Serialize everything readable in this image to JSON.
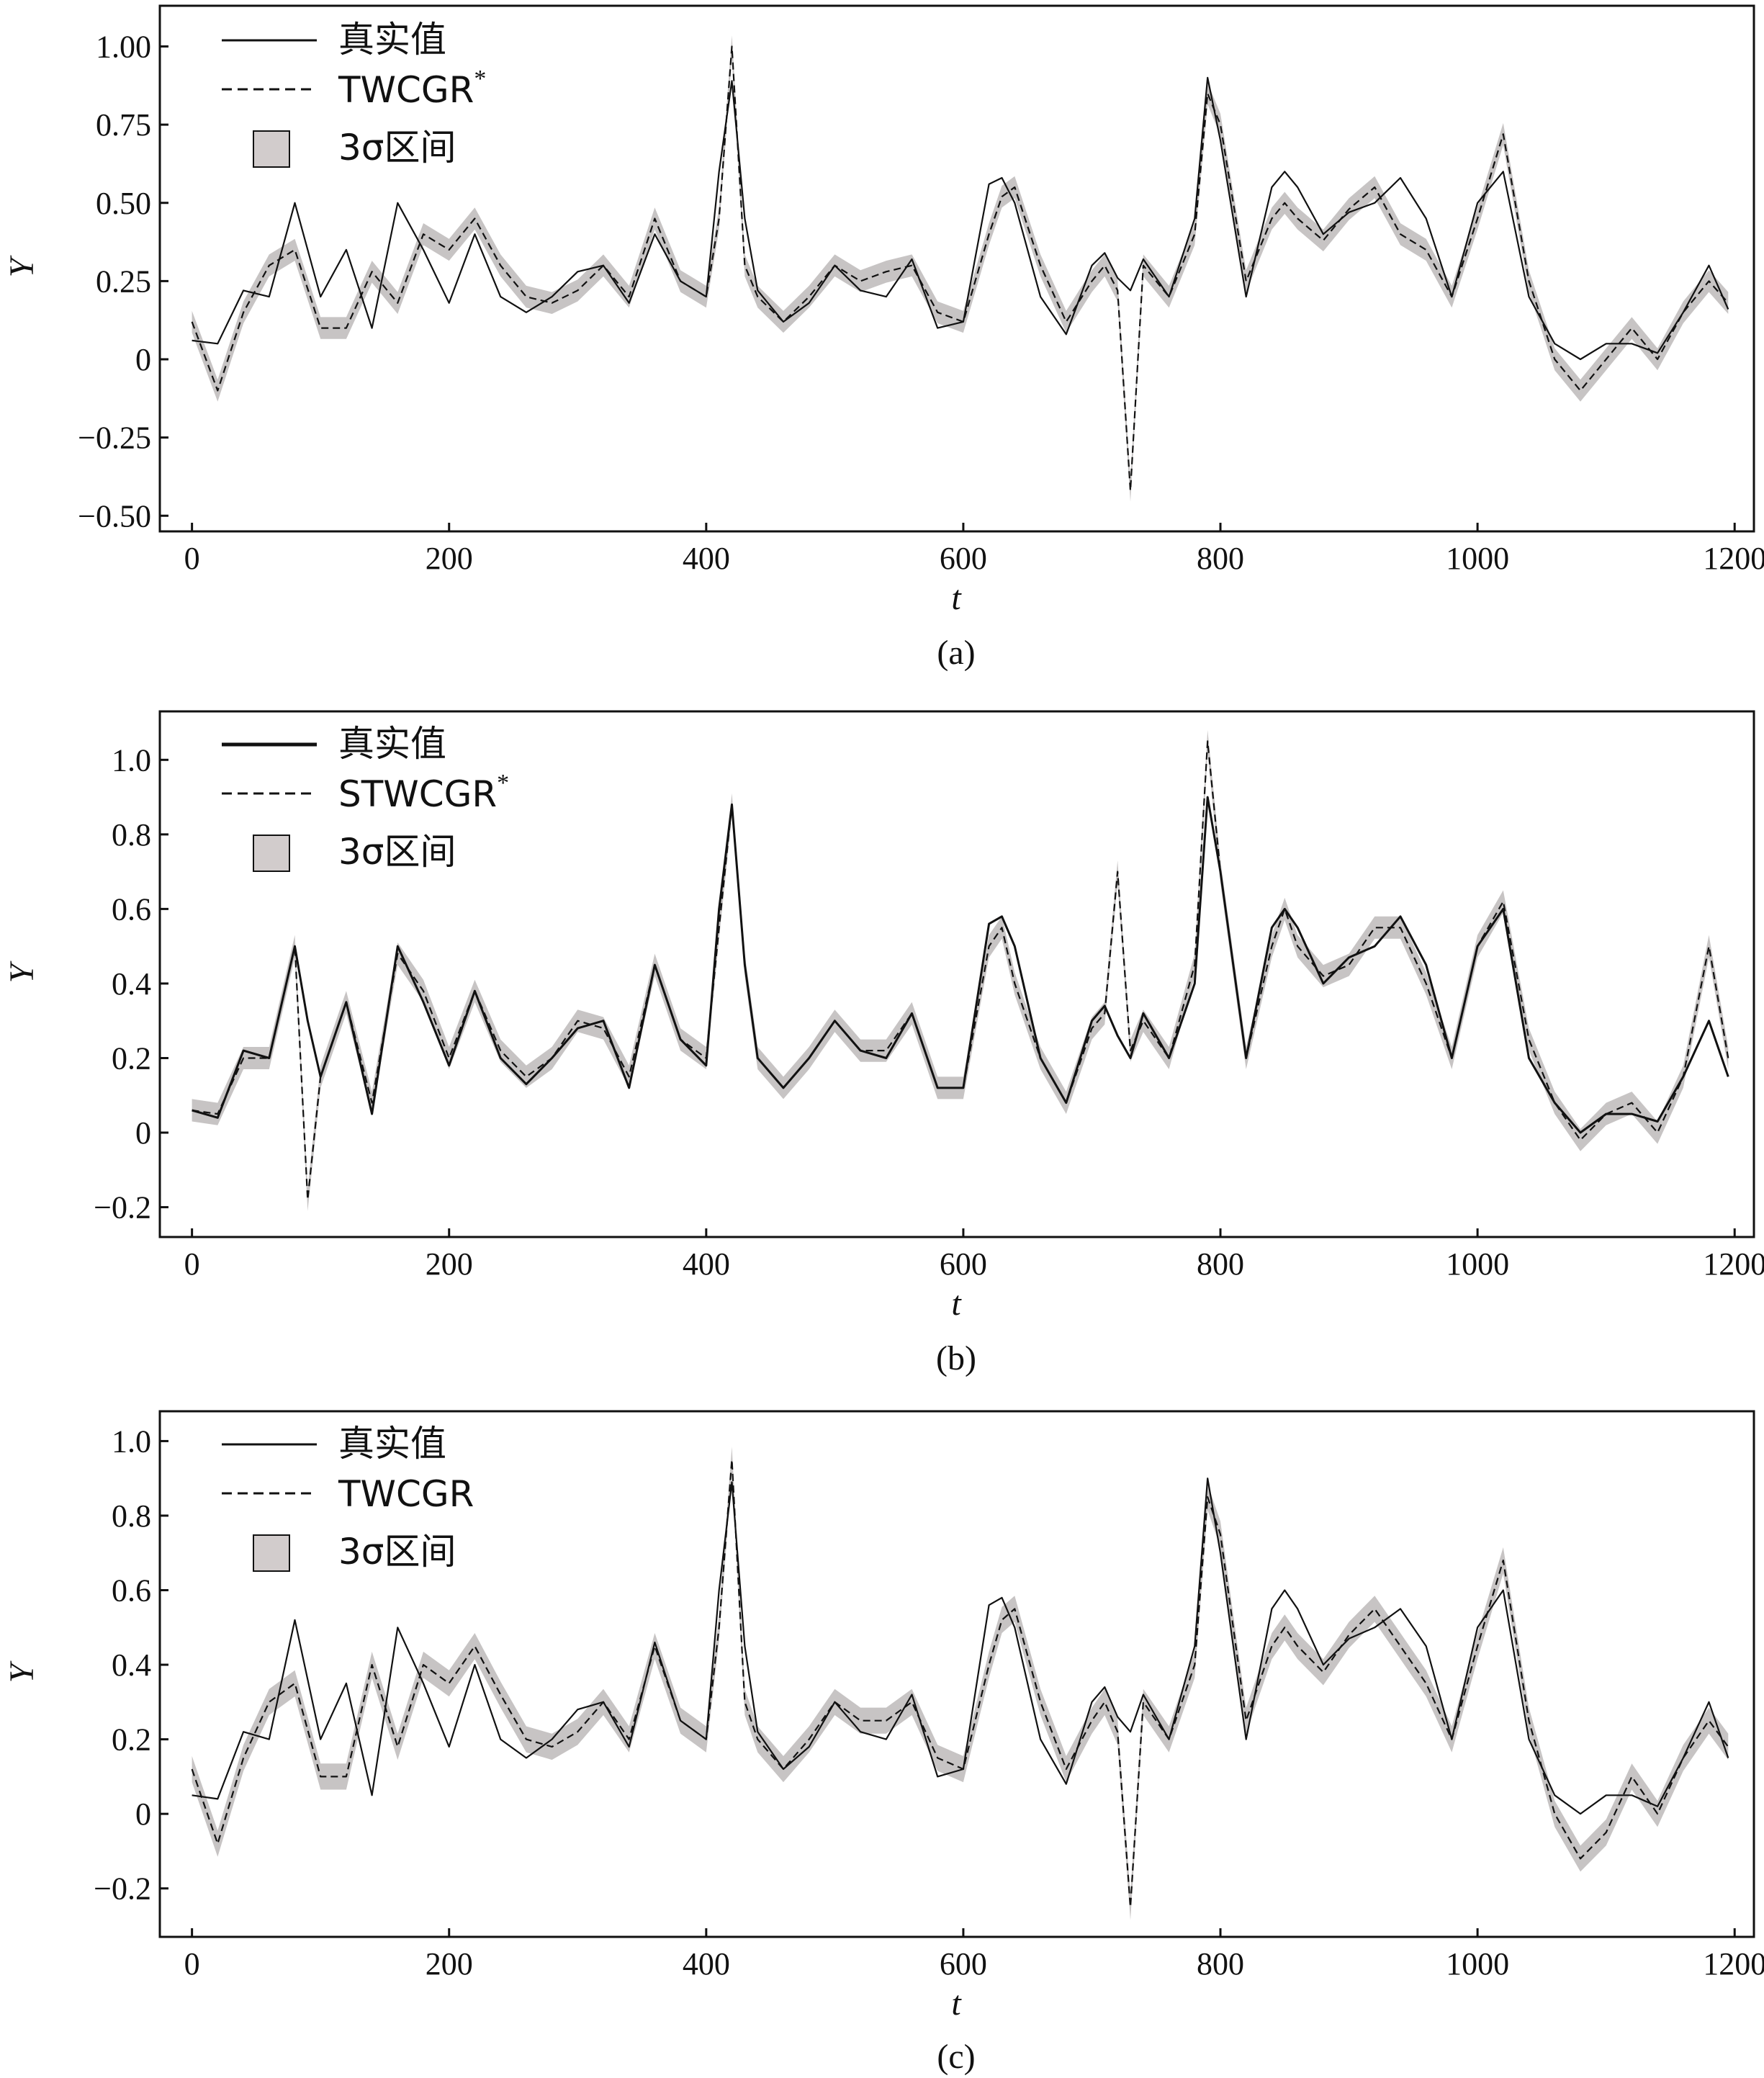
{
  "chart_data": [
    {
      "type": "line",
      "panel_label": "(a)",
      "xlabel": "t",
      "ylabel": "Y",
      "xlim": [
        -25,
        1215
      ],
      "ylim": [
        -0.55,
        1.13
      ],
      "xticks": [
        0,
        200,
        400,
        600,
        800,
        1000,
        1200
      ],
      "xtick_labels": [
        "0",
        "200",
        "400",
        "600",
        "800",
        "1000",
        "1200"
      ],
      "yticks": [
        -0.5,
        -0.25,
        0,
        0.25,
        0.5,
        0.75,
        1.0
      ],
      "ytick_labels": [
        "−0.50",
        "−0.25",
        "0",
        "0.25",
        "0.50",
        "0.75",
        "1.00"
      ],
      "legend": [
        "真实值",
        "TWCGR",
        "3σ区间"
      ],
      "legend_superscripts": [
        "",
        "*",
        ""
      ],
      "legend_position": "top-left",
      "grid": false,
      "x": [
        0,
        20,
        40,
        60,
        80,
        100,
        120,
        140,
        160,
        180,
        200,
        220,
        240,
        260,
        280,
        300,
        320,
        340,
        360,
        380,
        400,
        410,
        420,
        430,
        440,
        460,
        480,
        500,
        520,
        540,
        560,
        580,
        600,
        620,
        630,
        640,
        660,
        680,
        700,
        710,
        720,
        730,
        740,
        760,
        780,
        790,
        800,
        820,
        840,
        850,
        860,
        880,
        900,
        920,
        940,
        960,
        980,
        1000,
        1020,
        1040,
        1060,
        1080,
        1100,
        1120,
        1140,
        1160,
        1180,
        1195
      ],
      "series": [
        {
          "name": "真实值",
          "style": "solid",
          "values": [
            0.06,
            0.05,
            0.22,
            0.2,
            0.5,
            0.2,
            0.35,
            0.1,
            0.5,
            0.35,
            0.18,
            0.4,
            0.2,
            0.15,
            0.2,
            0.28,
            0.3,
            0.18,
            0.4,
            0.25,
            0.2,
            0.6,
            0.89,
            0.45,
            0.22,
            0.12,
            0.18,
            0.3,
            0.22,
            0.2,
            0.32,
            0.1,
            0.12,
            0.56,
            0.58,
            0.5,
            0.2,
            0.08,
            0.3,
            0.34,
            0.26,
            0.22,
            0.32,
            0.2,
            0.45,
            0.9,
            0.7,
            0.2,
            0.55,
            0.6,
            0.55,
            0.4,
            0.47,
            0.5,
            0.58,
            0.45,
            0.2,
            0.5,
            0.6,
            0.2,
            0.05,
            0.0,
            0.05,
            0.05,
            0.02,
            0.15,
            0.3,
            0.16
          ]
        },
        {
          "name": "TWCGR*",
          "style": "dashed",
          "values": [
            0.12,
            -0.1,
            0.15,
            0.3,
            0.35,
            0.1,
            0.1,
            0.28,
            0.18,
            0.4,
            0.35,
            0.45,
            0.3,
            0.2,
            0.18,
            0.22,
            0.3,
            0.2,
            0.45,
            0.25,
            0.2,
            0.45,
            1.0,
            0.3,
            0.2,
            0.12,
            0.2,
            0.3,
            0.25,
            0.28,
            0.3,
            0.15,
            0.12,
            0.4,
            0.52,
            0.55,
            0.3,
            0.12,
            0.25,
            0.3,
            0.22,
            -0.42,
            0.3,
            0.2,
            0.4,
            0.85,
            0.75,
            0.25,
            0.45,
            0.5,
            0.45,
            0.38,
            0.48,
            0.55,
            0.4,
            0.35,
            0.2,
            0.45,
            0.72,
            0.25,
            0.0,
            -0.1,
            0.0,
            0.1,
            0.0,
            0.15,
            0.25,
            0.18
          ]
        }
      ],
      "band": {
        "name": "3σ区间",
        "halfwidth": 0.035
      }
    },
    {
      "type": "line",
      "panel_label": "(b)",
      "xlabel": "t",
      "ylabel": "Y",
      "xlim": [
        -25,
        1215
      ],
      "ylim": [
        -0.28,
        1.13
      ],
      "xticks": [
        0,
        200,
        400,
        600,
        800,
        1000,
        1200
      ],
      "xtick_labels": [
        "0",
        "200",
        "400",
        "600",
        "800",
        "1000",
        "1200"
      ],
      "yticks": [
        -0.2,
        0,
        0.2,
        0.4,
        0.6,
        0.8,
        1.0
      ],
      "ytick_labels": [
        "−0.2",
        "0",
        "0.2",
        "0.4",
        "0.6",
        "0.8",
        "1.0"
      ],
      "legend": [
        "真实值",
        "STWCGR",
        "3σ区间"
      ],
      "legend_superscripts": [
        "",
        "*",
        ""
      ],
      "legend_position": "top-left",
      "grid": false,
      "x": [
        0,
        20,
        40,
        60,
        80,
        90,
        100,
        120,
        140,
        160,
        180,
        200,
        220,
        240,
        260,
        280,
        300,
        320,
        340,
        360,
        380,
        400,
        410,
        420,
        430,
        440,
        460,
        480,
        500,
        520,
        540,
        560,
        580,
        600,
        620,
        630,
        640,
        660,
        680,
        700,
        710,
        720,
        730,
        740,
        760,
        780,
        790,
        800,
        820,
        840,
        850,
        860,
        880,
        900,
        920,
        940,
        960,
        980,
        1000,
        1020,
        1040,
        1060,
        1080,
        1100,
        1120,
        1140,
        1160,
        1180,
        1195
      ],
      "series": [
        {
          "name": "真实值",
          "style": "solid",
          "values": [
            0.06,
            0.04,
            0.22,
            0.2,
            0.5,
            0.3,
            0.15,
            0.35,
            0.05,
            0.5,
            0.35,
            0.18,
            0.38,
            0.2,
            0.13,
            0.2,
            0.28,
            0.3,
            0.12,
            0.45,
            0.25,
            0.18,
            0.6,
            0.88,
            0.45,
            0.2,
            0.12,
            0.2,
            0.3,
            0.22,
            0.2,
            0.32,
            0.12,
            0.12,
            0.56,
            0.58,
            0.5,
            0.2,
            0.08,
            0.3,
            0.34,
            0.26,
            0.2,
            0.32,
            0.2,
            0.4,
            0.9,
            0.7,
            0.2,
            0.55,
            0.6,
            0.55,
            0.4,
            0.47,
            0.5,
            0.58,
            0.45,
            0.2,
            0.5,
            0.6,
            0.2,
            0.08,
            0.0,
            0.05,
            0.05,
            0.03,
            0.15,
            0.3,
            0.15
          ]
        },
        {
          "name": "STWCGR*",
          "style": "dashed",
          "values": [
            0.06,
            0.05,
            0.2,
            0.2,
            0.5,
            -0.18,
            0.15,
            0.35,
            0.08,
            0.48,
            0.38,
            0.2,
            0.38,
            0.22,
            0.15,
            0.2,
            0.3,
            0.28,
            0.15,
            0.45,
            0.25,
            0.2,
            0.55,
            0.88,
            0.45,
            0.2,
            0.12,
            0.2,
            0.3,
            0.22,
            0.22,
            0.32,
            0.12,
            0.12,
            0.5,
            0.55,
            0.4,
            0.2,
            0.08,
            0.28,
            0.32,
            0.7,
            0.22,
            0.3,
            0.2,
            0.45,
            1.05,
            0.7,
            0.2,
            0.5,
            0.6,
            0.5,
            0.42,
            0.45,
            0.55,
            0.55,
            0.4,
            0.2,
            0.5,
            0.62,
            0.25,
            0.08,
            -0.02,
            0.05,
            0.08,
            0.0,
            0.15,
            0.5,
            0.2
          ]
        }
      ],
      "band": {
        "name": "3σ区间",
        "halfwidth": 0.03
      }
    },
    {
      "type": "line",
      "panel_label": "(c)",
      "xlabel": "t",
      "ylabel": "Y",
      "xlim": [
        -25,
        1215
      ],
      "ylim": [
        -0.33,
        1.08
      ],
      "xticks": [
        0,
        200,
        400,
        600,
        800,
        1000,
        1200
      ],
      "xtick_labels": [
        "0",
        "200",
        "400",
        "600",
        "800",
        "1000",
        "1200"
      ],
      "yticks": [
        -0.2,
        0,
        0.2,
        0.4,
        0.6,
        0.8,
        1.0
      ],
      "ytick_labels": [
        "−0.2",
        "0",
        "0.2",
        "0.4",
        "0.6",
        "0.8",
        "1.0"
      ],
      "legend": [
        "真实值",
        "TWCGR",
        "3σ区间"
      ],
      "legend_superscripts": [
        "",
        "",
        ""
      ],
      "legend_position": "top-left",
      "grid": false,
      "x": [
        0,
        20,
        40,
        60,
        80,
        100,
        120,
        140,
        160,
        180,
        200,
        220,
        240,
        260,
        280,
        300,
        320,
        340,
        360,
        380,
        400,
        410,
        420,
        430,
        440,
        460,
        480,
        500,
        520,
        540,
        560,
        580,
        600,
        620,
        630,
        640,
        660,
        680,
        700,
        710,
        720,
        730,
        740,
        760,
        780,
        790,
        800,
        820,
        840,
        850,
        860,
        880,
        900,
        920,
        940,
        960,
        980,
        1000,
        1020,
        1040,
        1060,
        1080,
        1100,
        1120,
        1140,
        1160,
        1180,
        1195
      ],
      "series": [
        {
          "name": "真实值",
          "style": "solid",
          "values": [
            0.05,
            0.04,
            0.22,
            0.2,
            0.52,
            0.2,
            0.35,
            0.05,
            0.5,
            0.35,
            0.18,
            0.4,
            0.2,
            0.15,
            0.2,
            0.28,
            0.3,
            0.18,
            0.46,
            0.25,
            0.2,
            0.6,
            0.89,
            0.45,
            0.22,
            0.12,
            0.18,
            0.3,
            0.22,
            0.2,
            0.32,
            0.1,
            0.12,
            0.56,
            0.58,
            0.5,
            0.2,
            0.08,
            0.3,
            0.34,
            0.26,
            0.22,
            0.32,
            0.2,
            0.45,
            0.9,
            0.7,
            0.2,
            0.55,
            0.6,
            0.55,
            0.4,
            0.47,
            0.5,
            0.55,
            0.45,
            0.2,
            0.5,
            0.6,
            0.2,
            0.05,
            0.0,
            0.05,
            0.05,
            0.02,
            0.15,
            0.3,
            0.15
          ]
        },
        {
          "name": "TWCGR",
          "style": "dashed",
          "values": [
            0.12,
            -0.08,
            0.15,
            0.3,
            0.35,
            0.1,
            0.1,
            0.4,
            0.18,
            0.4,
            0.35,
            0.45,
            0.32,
            0.2,
            0.18,
            0.22,
            0.3,
            0.2,
            0.45,
            0.25,
            0.2,
            0.5,
            0.95,
            0.3,
            0.2,
            0.12,
            0.2,
            0.3,
            0.25,
            0.25,
            0.3,
            0.15,
            0.12,
            0.4,
            0.52,
            0.55,
            0.3,
            0.12,
            0.25,
            0.3,
            0.22,
            -0.25,
            0.3,
            0.2,
            0.4,
            0.85,
            0.75,
            0.25,
            0.45,
            0.5,
            0.45,
            0.38,
            0.48,
            0.55,
            0.45,
            0.35,
            0.2,
            0.45,
            0.68,
            0.25,
            0.0,
            -0.12,
            -0.05,
            0.1,
            0.0,
            0.15,
            0.25,
            0.18
          ]
        }
      ],
      "band": {
        "name": "3σ区间",
        "halfwidth": 0.035
      }
    }
  ]
}
